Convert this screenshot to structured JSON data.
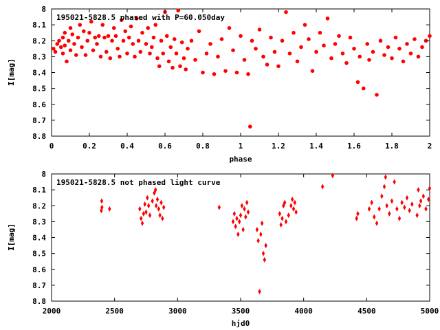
{
  "chart_data": [
    {
      "type": "scatter",
      "title": "195021-5828.5 phased with P=60.050day",
      "xlabel": "phase",
      "ylabel": "I[mag]",
      "xlim": [
        0,
        2
      ],
      "ylim": [
        8,
        8.8
      ],
      "y_inverted": true,
      "grid": false,
      "marker": "filled-dot",
      "color": "#ff0000",
      "xticks": [
        "0",
        "0.2",
        "0.4",
        "0.6",
        "0.8",
        "1",
        "1.2",
        "1.4",
        "1.6",
        "1.8",
        "2"
      ],
      "yticks": [
        "8",
        "8.1",
        "8.2",
        "8.3",
        "8.4",
        "8.5",
        "8.6",
        "8.7",
        "8.8"
      ],
      "series": [
        {
          "x": [
            0.01,
            0.02,
            0.03,
            0.04,
            0.05,
            0.06,
            0.06,
            0.07,
            0.07,
            0.08,
            0.09,
            0.1,
            0.1,
            0.11,
            0.12,
            0.13,
            0.14,
            0.15,
            0.16,
            0.17,
            0.18,
            0.19,
            0.2,
            0.21,
            0.22,
            0.23,
            0.24,
            0.25,
            0.26,
            0.27,
            0.28,
            0.29,
            0.3,
            0.31,
            0.32,
            0.33,
            0.34,
            0.35,
            0.36,
            0.37,
            0.38,
            0.39,
            0.4,
            0.41,
            0.42,
            0.43,
            0.44,
            0.45,
            0.46,
            0.47,
            0.48,
            0.5,
            0.51,
            0.52,
            0.53,
            0.54,
            0.55,
            0.56,
            0.57,
            0.58,
            0.59,
            0.6,
            0.61,
            0.62,
            0.63,
            0.64,
            0.65,
            0.66,
            0.67,
            0.68,
            0.69,
            0.7,
            0.71,
            0.72,
            0.74,
            0.76,
            0.78,
            0.8,
            0.82,
            0.84,
            0.86,
            0.88,
            0.9,
            0.92,
            0.94,
            0.96,
            0.98,
            1.0,
            1.02,
            1.04,
            1.05,
            1.06,
            1.08,
            1.1,
            1.12,
            1.14,
            1.16,
            1.18,
            1.2,
            1.22,
            1.24,
            1.26,
            1.28,
            1.3,
            1.32,
            1.34,
            1.36,
            1.38,
            1.4,
            1.42,
            1.44,
            1.46,
            1.48,
            1.5,
            1.52,
            1.54,
            1.56,
            1.58,
            1.6,
            1.62,
            1.63,
            1.65,
            1.67,
            1.68,
            1.7,
            1.72,
            1.74,
            1.76,
            1.78,
            1.8,
            1.82,
            1.84,
            1.86,
            1.88,
            1.9,
            1.92,
            1.94,
            1.96,
            1.98,
            2.0
          ],
          "y": [
            8.25,
            8.27,
            8.22,
            8.2,
            8.24,
            8.28,
            8.18,
            8.23,
            8.15,
            8.33,
            8.2,
            8.26,
            8.12,
            8.16,
            8.22,
            8.29,
            8.18,
            8.1,
            8.24,
            8.14,
            8.29,
            8.2,
            8.15,
            8.08,
            8.26,
            8.18,
            8.22,
            8.17,
            8.3,
            8.1,
            8.18,
            8.27,
            8.17,
            8.31,
            8.2,
            8.12,
            8.17,
            8.25,
            8.3,
            8.07,
            8.2,
            8.14,
            8.28,
            8.18,
            8.11,
            8.22,
            8.3,
            8.06,
            8.2,
            8.27,
            8.15,
            8.22,
            8.12,
            8.28,
            8.24,
            8.18,
            8.1,
            8.31,
            8.36,
            8.2,
            8.28,
            8.02,
            8.17,
            8.33,
            8.24,
            8.37,
            8.19,
            8.28,
            8.01,
            8.36,
            8.21,
            8.31,
            8.38,
            8.25,
            8.2,
            8.32,
            8.14,
            8.4,
            8.28,
            8.22,
            8.41,
            8.3,
            8.19,
            8.39,
            8.12,
            8.26,
            8.4,
            8.17,
            8.32,
            8.41,
            8.74,
            8.2,
            8.25,
            8.13,
            8.3,
            8.35,
            8.18,
            8.27,
            8.36,
            8.2,
            8.02,
            8.28,
            8.15,
            8.33,
            8.24,
            8.1,
            8.19,
            8.39,
            8.27,
            8.15,
            8.23,
            8.06,
            8.31,
            8.22,
            8.17,
            8.28,
            8.34,
            8.18,
            8.25,
            8.46,
            8.3,
            8.5,
            8.22,
            8.32,
            8.27,
            8.54,
            8.2,
            8.29,
            8.24,
            8.31,
            8.18,
            8.25,
            8.33,
            8.22,
            8.28,
            8.19,
            8.3,
            8.24,
            8.2,
            8.17
          ]
        }
      ]
    },
    {
      "type": "scatter",
      "title": "195021-5828.5 not phased light curve",
      "xlabel": "hjd0",
      "ylabel": "I[mag]",
      "xlim": [
        2000,
        5000
      ],
      "ylim": [
        8,
        8.8
      ],
      "y_inverted": true,
      "grid": false,
      "marker": "filled-diamond",
      "color": "#ff0000",
      "xticks": [
        "2000",
        "2500",
        "3000",
        "3500",
        "4000",
        "4500",
        "5000"
      ],
      "yticks": [
        "8",
        "8.1",
        "8.2",
        "8.3",
        "8.4",
        "8.5",
        "8.6",
        "8.7",
        "8.8"
      ],
      "series": [
        {
          "x": [
            2395,
            2398,
            2400,
            2460,
            2700,
            2710,
            2720,
            2730,
            2740,
            2750,
            2760,
            2770,
            2780,
            2800,
            2815,
            2825,
            2830,
            2840,
            2850,
            2860,
            2870,
            2880,
            2890,
            3330,
            3440,
            3450,
            3460,
            3470,
            3480,
            3490,
            3500,
            3510,
            3520,
            3530,
            3540,
            3550,
            3560,
            3630,
            3640,
            3650,
            3660,
            3670,
            3680,
            3690,
            3700,
            3810,
            3820,
            3830,
            3840,
            3850,
            3860,
            3880,
            3900,
            3910,
            3920,
            3930,
            3940,
            4150,
            4230,
            4420,
            4430,
            4520,
            4540,
            4560,
            4580,
            4600,
            4620,
            4640,
            4650,
            4660,
            4680,
            4700,
            4720,
            4740,
            4760,
            4780,
            4800,
            4820,
            4840,
            4860,
            4900,
            4910,
            4920,
            4930,
            4950,
            4970,
            4990,
            5000
          ],
          "y": [
            8.23,
            8.17,
            8.21,
            8.22,
            8.22,
            8.28,
            8.31,
            8.25,
            8.19,
            8.24,
            8.15,
            8.2,
            8.26,
            8.17,
            8.12,
            8.1,
            8.2,
            8.16,
            8.22,
            8.26,
            8.18,
            8.28,
            8.21,
            8.21,
            8.3,
            8.25,
            8.33,
            8.28,
            8.38,
            8.3,
            8.26,
            8.2,
            8.35,
            8.22,
            8.27,
            8.18,
            8.24,
            8.35,
            8.42,
            8.74,
            8.38,
            8.31,
            8.5,
            8.54,
            8.45,
            8.25,
            8.32,
            8.28,
            8.2,
            8.18,
            8.3,
            8.26,
            8.2,
            8.16,
            8.22,
            8.18,
            8.24,
            8.08,
            8.01,
            8.28,
            8.25,
            8.22,
            8.18,
            8.27,
            8.31,
            8.22,
            8.14,
            8.08,
            8.02,
            8.2,
            8.25,
            8.17,
            8.05,
            8.22,
            8.28,
            8.18,
            8.21,
            8.15,
            8.23,
            8.19,
            8.26,
            8.1,
            8.2,
            8.17,
            8.14,
            8.22,
            8.16,
            8.09
          ]
        }
      ]
    }
  ]
}
